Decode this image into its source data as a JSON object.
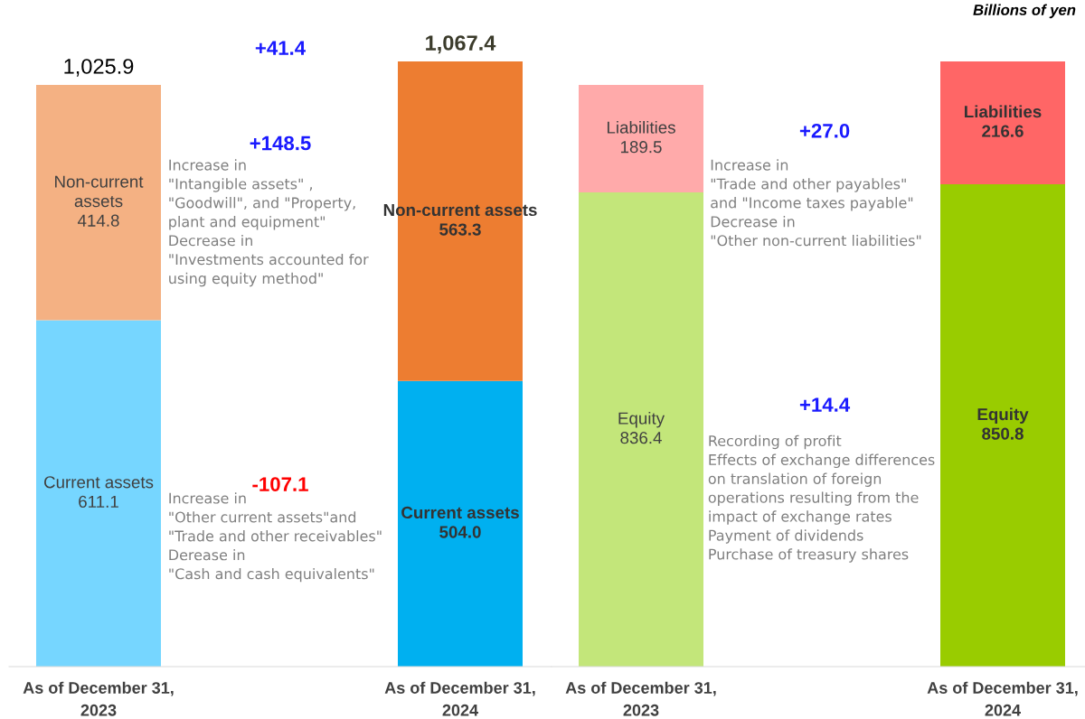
{
  "chart_data": [
    {
      "type": "bar",
      "stacked": true,
      "categories": [
        "As of December 31,\n2023",
        "As of December 31,\n2024"
      ],
      "tick_labels": "x",
      "grid": false,
      "legend": false,
      "series": [
        {
          "name": "Current assets",
          "colors": [
            "#76d6ff",
            "#00b0f0"
          ],
          "values": [
            611.1,
            504.0
          ],
          "value_labels": [
            "611.1",
            "504.0"
          ]
        },
        {
          "name": "Non-current assets",
          "colors": [
            "#f4b183",
            "#ed7d31"
          ],
          "values": [
            414.8,
            563.3
          ],
          "value_labels": [
            "414.8",
            "563.3"
          ]
        }
      ],
      "totals": [
        "1,025.9",
        "1,067.4"
      ],
      "annotations": [
        "+41.4",
        "+148.5",
        "Increase in\n\"Intangible assets\" ,\n\"Goodwill\", and \"Property,\nplant and equipment\"\nDecrease in\n\"Investments accounted for\nusing equity method\"",
        "-107.1",
        "Increase in\n\"Other current assets\"and\n\"Trade and other receivables\"\nDerease in\n\"Cash and cash equivalents\""
      ]
    },
    {
      "type": "bar",
      "stacked": true,
      "categories": [
        "As of December 31,\n2023",
        "As of December 31,\n2024"
      ],
      "tick_labels": "x",
      "grid": false,
      "legend": false,
      "series": [
        {
          "name": "Equity",
          "colors": [
            "#c3e67a",
            "#99cc00"
          ],
          "values": [
            836.4,
            850.8
          ],
          "value_labels": [
            "836.4",
            "850.8"
          ]
        },
        {
          "name": "Liabilities",
          "colors": [
            "#ffaaaa",
            "#ff6666"
          ],
          "values": [
            189.5,
            216.6
          ],
          "value_labels": [
            "189.5",
            "216.6"
          ]
        }
      ],
      "annotations": [
        "+27.0",
        "Increase in\n\"Trade and other payables\"\nand \"Income taxes payable\"\nDecrease in\n\"Other non-current liabilities\"",
        "+14.4",
        "Recording of profit\nEffects of exchange differences\non translation of foreign\noperations resulting from the\nimpact of exchange rates\nPayment of dividends\nPurchase of treasury shares",
        "Billions of yen"
      ]
    }
  ]
}
